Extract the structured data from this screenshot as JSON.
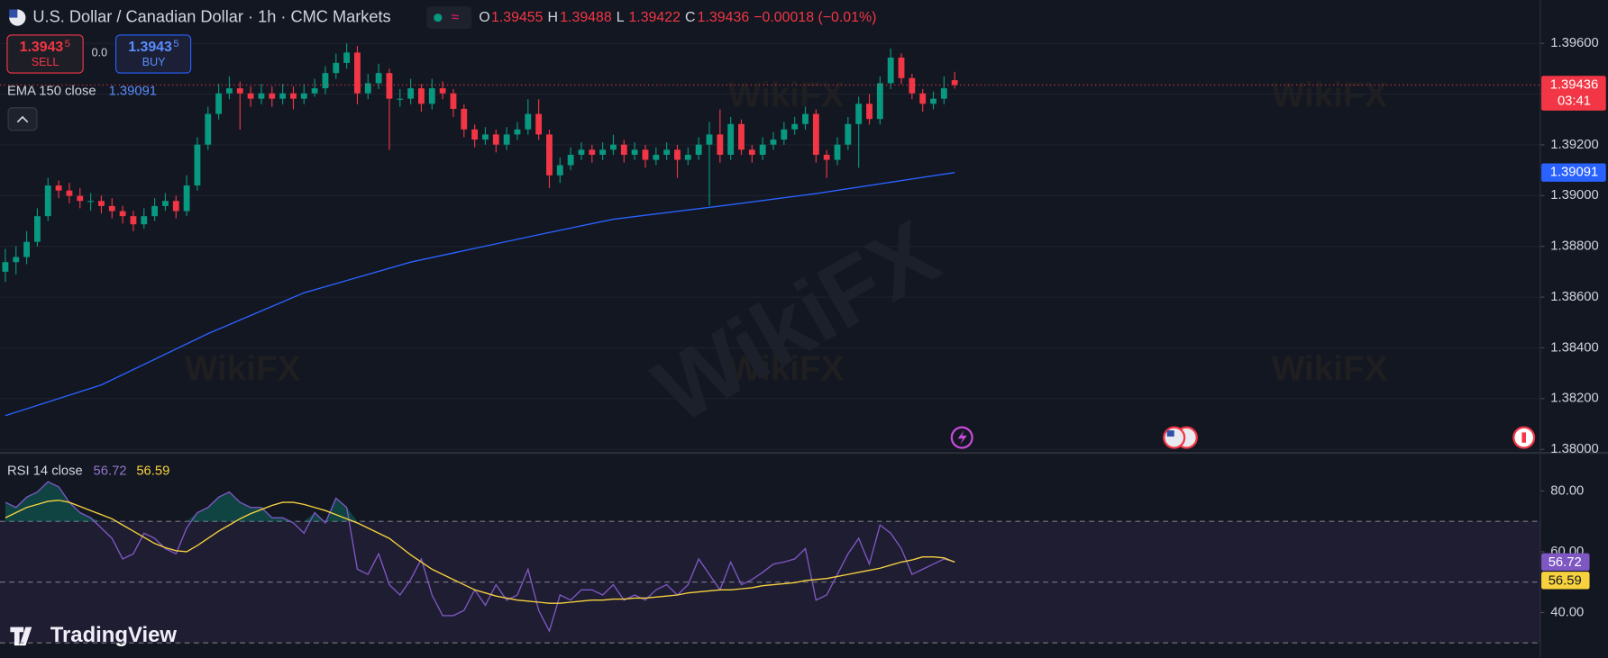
{
  "header": {
    "symbol": "U.S. Dollar / Canadian Dollar · 1h · CMC Markets",
    "ohlc": [
      {
        "key": "O",
        "value": "1.39455"
      },
      {
        "key": "H",
        "value": "1.39488"
      },
      {
        "key": "L",
        "value": "1.39422"
      },
      {
        "key": "C",
        "value": "1.39436"
      }
    ],
    "change": "−0.00018 (−0.01%)",
    "sell": {
      "price": "1.3943",
      "pip": "5",
      "label": "SELL"
    },
    "spread": "0.0",
    "buy": {
      "price": "1.3943",
      "pip": "5",
      "label": "BUY"
    },
    "logo": "TradingView",
    "watermark": "WikiFX"
  },
  "chart_data": [
    {
      "type": "candlestick",
      "up_color": "#089981",
      "down_color": "#f23645",
      "xlim": [
        -0.5,
        143.9
      ],
      "ylim": [
        1.3799,
        1.3977
      ],
      "yticks": [
        {
          "value": 1.38,
          "label": "1.38000"
        },
        {
          "value": 1.382,
          "label": "1.38200"
        },
        {
          "value": 1.384,
          "label": "1.38400"
        },
        {
          "value": 1.386,
          "label": "1.38600"
        },
        {
          "value": 1.388,
          "label": "1.38800"
        },
        {
          "value": 1.39,
          "label": "1.39000"
        },
        {
          "value": 1.392,
          "label": "1.39200"
        },
        {
          "value": 1.394,
          "label": "1.39400"
        },
        {
          "value": 1.396,
          "label": "1.39600"
        }
      ],
      "grid": true,
      "last_price": 1.39436,
      "countdown": "03:41",
      "candles": [
        [
          1.387,
          1.3879,
          1.3866,
          1.38738
        ],
        [
          1.38738,
          1.388,
          1.3869,
          1.38758
        ],
        [
          1.38758,
          1.3886,
          1.3873,
          1.38818
        ],
        [
          1.38818,
          1.3895,
          1.388,
          1.38919
        ],
        [
          1.38919,
          1.3907,
          1.389,
          1.3904
        ],
        [
          1.3904,
          1.3906,
          1.3899,
          1.3902
        ],
        [
          1.3902,
          1.3905,
          1.3897,
          1.38999
        ],
        [
          1.38999,
          1.3903,
          1.3895,
          1.38979
        ],
        [
          1.38979,
          1.3901,
          1.3894,
          1.38979
        ],
        [
          1.38979,
          1.39,
          1.3893,
          1.38959
        ],
        [
          1.38959,
          1.3899,
          1.3891,
          1.38939
        ],
        [
          1.38939,
          1.3896,
          1.3889,
          1.38919
        ],
        [
          1.38919,
          1.3894,
          1.3886,
          1.38887
        ],
        [
          1.38887,
          1.3895,
          1.3887,
          1.38919
        ],
        [
          1.38919,
          1.3899,
          1.389,
          1.38959
        ],
        [
          1.38959,
          1.3901,
          1.3894,
          1.38979
        ],
        [
          1.38979,
          1.39,
          1.3891,
          1.38939
        ],
        [
          1.38939,
          1.3908,
          1.3892,
          1.3904
        ],
        [
          1.3904,
          1.3923,
          1.3902,
          1.39201
        ],
        [
          1.39201,
          1.3935,
          1.3918,
          1.39322
        ],
        [
          1.39322,
          1.3944,
          1.393,
          1.39403
        ],
        [
          1.39403,
          1.3947,
          1.3938,
          1.39423
        ],
        [
          1.39423,
          1.3945,
          1.3926,
          1.39403
        ],
        [
          1.39403,
          1.3943,
          1.3935,
          1.39382
        ],
        [
          1.39382,
          1.3944,
          1.3936,
          1.39403
        ],
        [
          1.39403,
          1.3943,
          1.3935,
          1.39382
        ],
        [
          1.39382,
          1.3944,
          1.3936,
          1.39403
        ],
        [
          1.39403,
          1.3943,
          1.3934,
          1.39382
        ],
        [
          1.39382,
          1.3944,
          1.3936,
          1.39403
        ],
        [
          1.39403,
          1.3946,
          1.3939,
          1.39423
        ],
        [
          1.39423,
          1.3951,
          1.394,
          1.39483
        ],
        [
          1.39483,
          1.3956,
          1.3946,
          1.39523
        ],
        [
          1.39523,
          1.396,
          1.395,
          1.39564
        ],
        [
          1.39564,
          1.3959,
          1.3936,
          1.39403
        ],
        [
          1.39403,
          1.3948,
          1.3938,
          1.39443
        ],
        [
          1.39443,
          1.3952,
          1.3942,
          1.39483
        ],
        [
          1.39483,
          1.395,
          1.3918,
          1.39382
        ],
        [
          1.39382,
          1.3942,
          1.3935,
          1.39382
        ],
        [
          1.39382,
          1.3946,
          1.3936,
          1.39423
        ],
        [
          1.39423,
          1.3944,
          1.3933,
          1.39362
        ],
        [
          1.39362,
          1.3946,
          1.3934,
          1.39423
        ],
        [
          1.39423,
          1.3945,
          1.3938,
          1.39403
        ],
        [
          1.39403,
          1.3942,
          1.3931,
          1.39342
        ],
        [
          1.39342,
          1.3936,
          1.3923,
          1.39261
        ],
        [
          1.39261,
          1.3928,
          1.3919,
          1.39221
        ],
        [
          1.39221,
          1.3927,
          1.392,
          1.39241
        ],
        [
          1.39241,
          1.3926,
          1.3917,
          1.39201
        ],
        [
          1.39201,
          1.3927,
          1.3918,
          1.39241
        ],
        [
          1.39241,
          1.3929,
          1.3922,
          1.39261
        ],
        [
          1.39261,
          1.3938,
          1.3924,
          1.39322
        ],
        [
          1.39322,
          1.3938,
          1.3922,
          1.39241
        ],
        [
          1.39241,
          1.3926,
          1.3903,
          1.3908
        ],
        [
          1.3908,
          1.3915,
          1.3905,
          1.3912
        ],
        [
          1.3912,
          1.3919,
          1.391,
          1.39161
        ],
        [
          1.39161,
          1.3921,
          1.3914,
          1.39181
        ],
        [
          1.39181,
          1.392,
          1.3913,
          1.39161
        ],
        [
          1.39161,
          1.3921,
          1.3914,
          1.39181
        ],
        [
          1.39181,
          1.3924,
          1.3916,
          1.39201
        ],
        [
          1.39201,
          1.3922,
          1.3913,
          1.39161
        ],
        [
          1.39161,
          1.3921,
          1.3914,
          1.39181
        ],
        [
          1.39181,
          1.392,
          1.3911,
          1.39141
        ],
        [
          1.39141,
          1.3919,
          1.3912,
          1.39161
        ],
        [
          1.39161,
          1.3921,
          1.3914,
          1.39181
        ],
        [
          1.39181,
          1.392,
          1.3907,
          1.39141
        ],
        [
          1.39141,
          1.3919,
          1.3912,
          1.39161
        ],
        [
          1.39161,
          1.3923,
          1.3914,
          1.39201
        ],
        [
          1.39201,
          1.3929,
          1.3896,
          1.39241
        ],
        [
          1.39241,
          1.3934,
          1.3913,
          1.39161
        ],
        [
          1.39161,
          1.3931,
          1.3914,
          1.39282
        ],
        [
          1.39282,
          1.393,
          1.3916,
          1.39181
        ],
        [
          1.39181,
          1.392,
          1.3913,
          1.39161
        ],
        [
          1.39161,
          1.3923,
          1.3914,
          1.39201
        ],
        [
          1.39201,
          1.3925,
          1.3918,
          1.39221
        ],
        [
          1.39221,
          1.3929,
          1.392,
          1.39261
        ],
        [
          1.39261,
          1.3931,
          1.3924,
          1.39282
        ],
        [
          1.39282,
          1.3935,
          1.3926,
          1.39322
        ],
        [
          1.39322,
          1.3934,
          1.3913,
          1.39161
        ],
        [
          1.39161,
          1.3918,
          1.3907,
          1.39141
        ],
        [
          1.39141,
          1.3923,
          1.3912,
          1.39201
        ],
        [
          1.39201,
          1.3931,
          1.3918,
          1.39282
        ],
        [
          1.39282,
          1.3939,
          1.3911,
          1.39362
        ],
        [
          1.39362,
          1.394,
          1.3928,
          1.39302
        ],
        [
          1.39302,
          1.3947,
          1.3928,
          1.39443
        ],
        [
          1.39443,
          1.3958,
          1.3942,
          1.39544
        ],
        [
          1.39544,
          1.3956,
          1.3944,
          1.39463
        ],
        [
          1.39463,
          1.3948,
          1.3938,
          1.39403
        ],
        [
          1.39403,
          1.3942,
          1.3933,
          1.39362
        ],
        [
          1.39362,
          1.3941,
          1.3934,
          1.39382
        ],
        [
          1.39382,
          1.3947,
          1.3936,
          1.39423
        ],
        [
          1.39455,
          1.39488,
          1.39422,
          1.39436
        ]
      ],
      "ema": {
        "name": "EMA 150 close",
        "color": "#2962ff",
        "x": [
          0,
          9,
          19,
          28,
          38,
          50,
          57,
          67,
          76,
          89
        ],
        "values": [
          1.38133,
          1.38254,
          1.38456,
          1.38617,
          1.38738,
          1.38846,
          1.38907,
          1.38959,
          1.39008,
          1.39091
        ]
      }
    },
    {
      "type": "line",
      "xlim": [
        -0.5,
        143.9
      ],
      "ylim": [
        25.1,
        92.2
      ],
      "yticks": [
        {
          "value": 40,
          "label": "40.00"
        },
        {
          "value": 60,
          "label": "60.00"
        },
        {
          "value": 80,
          "label": "80.00"
        }
      ],
      "levels": [
        70,
        50,
        30
      ],
      "series": [
        {
          "name": "RSI 14 close",
          "color": "#7e57c2",
          "values": [
            76.27,
            74.58,
            77.97,
            79.66,
            83.05,
            81.36,
            76.27,
            72.88,
            71.19,
            67.8,
            64.41,
            57.63,
            59.32,
            66.1,
            64.41,
            61.02,
            59.32,
            67.8,
            72.88,
            74.58,
            77.97,
            79.66,
            76.27,
            74.58,
            74.58,
            71.19,
            71.19,
            69.49,
            66.1,
            72.88,
            69.49,
            77.63,
            74.58,
            54.24,
            52.54,
            59.32,
            49.15,
            45.76,
            50.85,
            57.63,
            45.76,
            38.98,
            38.98,
            40.68,
            47.46,
            42.37,
            49.15,
            44.07,
            45.76,
            54.24,
            40.68,
            33.9,
            45.76,
            44.07,
            47.46,
            47.46,
            45.76,
            49.15,
            44.07,
            45.76,
            44.07,
            47.46,
            49.15,
            45.76,
            49.15,
            57.63,
            52.54,
            47.46,
            56.61,
            49.15,
            50.85,
            53.22,
            55.93,
            56.61,
            57.63,
            61.02,
            44.07,
            45.76,
            52.54,
            59.32,
            64.41,
            55.93,
            68.81,
            66.1,
            61.02,
            52.54,
            54.24,
            55.93,
            57.63,
            56.72
          ]
        },
        {
          "color": "#f7d23e",
          "values": [
            71.19,
            72.88,
            74.58,
            75.59,
            76.61,
            76.95,
            76.27,
            74.92,
            73.56,
            72.2,
            70.85,
            68.81,
            66.78,
            64.75,
            62.71,
            61.36,
            60.34,
            60,
            62.03,
            64.41,
            66.78,
            68.81,
            70.85,
            72.54,
            73.9,
            75.25,
            76.27,
            76.27,
            75.59,
            74.58,
            73.56,
            72.2,
            70.85,
            69.49,
            67.8,
            66.1,
            64.41,
            61.69,
            58.98,
            56.61,
            54.24,
            52.54,
            50.85,
            49.15,
            47.46,
            46.44,
            45.42,
            44.75,
            44.07,
            43.73,
            43.39,
            43.05,
            43.05,
            43.39,
            43.73,
            44.07,
            44.07,
            44.41,
            44.41,
            44.75,
            44.75,
            45.08,
            45.42,
            45.76,
            46.44,
            46.78,
            47.12,
            47.46,
            47.46,
            47.8,
            48.14,
            48.81,
            49.15,
            49.49,
            49.83,
            50.51,
            50.85,
            51.19,
            51.86,
            52.54,
            53.22,
            53.9,
            54.58,
            55.59,
            56.61,
            57.29,
            58.31,
            58.31,
            57.97,
            56.59
          ]
        }
      ]
    }
  ]
}
